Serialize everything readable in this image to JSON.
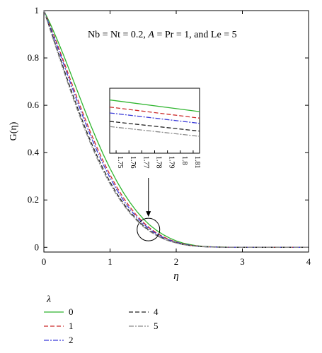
{
  "chart_data": {
    "type": "line",
    "xlabel": "η",
    "ylabel": "G(η)",
    "xlim": [
      0,
      4
    ],
    "ylim": [
      -0.02,
      1.0
    ],
    "xticks": [
      "0",
      "1",
      "2",
      "3",
      "4"
    ],
    "yticks": [
      "0",
      "0.2",
      "0.4",
      "0.6",
      "0.8",
      "1"
    ],
    "annotation": {
      "parts": [
        {
          "text": "Nb = Nt = 0.2, ",
          "italic": false
        },
        {
          "text": "A",
          "italic": true
        },
        {
          "text": " = Pr = 1, and Le = 5",
          "italic": false
        }
      ]
    },
    "legend": {
      "title": "λ",
      "placement": "bottom-left",
      "entries": [
        "0",
        "1",
        "2",
        "4",
        "5"
      ]
    },
    "x": [
      0,
      0.1,
      0.2,
      0.3,
      0.4,
      0.5,
      0.6,
      0.7,
      0.8,
      0.9,
      1.0,
      1.1,
      1.2,
      1.3,
      1.4,
      1.5,
      1.6,
      1.7,
      1.8,
      1.9,
      2.0,
      2.1,
      2.2,
      2.3,
      2.4,
      2.5,
      2.6,
      2.7,
      2.8,
      2.9,
      3.0,
      3.2,
      3.4,
      3.6,
      3.8,
      4.0
    ],
    "series": [
      {
        "name": "0",
        "color": "#2fb52f",
        "dash": "",
        "values": [
          1.0,
          0.942,
          0.878,
          0.81,
          0.738,
          0.665,
          0.592,
          0.521,
          0.454,
          0.391,
          0.333,
          0.28,
          0.232,
          0.19,
          0.153,
          0.121,
          0.094,
          0.072,
          0.054,
          0.039,
          0.027,
          0.018,
          0.012,
          0.007,
          0.004,
          0.0025,
          0.0015,
          0.001,
          0.0005,
          0.0003,
          0.0002,
          0.0001,
          0.0,
          0.0,
          0.0,
          0.0
        ]
      },
      {
        "name": "1",
        "color": "#cc2a2a",
        "dash": "6,3",
        "values": [
          1.0,
          0.932,
          0.86,
          0.785,
          0.709,
          0.633,
          0.559,
          0.489,
          0.423,
          0.362,
          0.306,
          0.255,
          0.21,
          0.17,
          0.135,
          0.106,
          0.081,
          0.061,
          0.045,
          0.032,
          0.022,
          0.015,
          0.009,
          0.006,
          0.0035,
          0.002,
          0.0012,
          0.0008,
          0.0004,
          0.0002,
          0.0001,
          0.0,
          0.0,
          0.0,
          0.0,
          0.0
        ]
      },
      {
        "name": "2",
        "color": "#3b3bd9",
        "dash": "7,2,2,2",
        "values": [
          1.0,
          0.927,
          0.851,
          0.773,
          0.696,
          0.619,
          0.545,
          0.475,
          0.409,
          0.349,
          0.294,
          0.244,
          0.2,
          0.161,
          0.128,
          0.1,
          0.076,
          0.057,
          0.042,
          0.03,
          0.021,
          0.014,
          0.009,
          0.005,
          0.003,
          0.0018,
          0.001,
          0.0006,
          0.0003,
          0.0002,
          0.0001,
          0.0,
          0.0,
          0.0,
          0.0,
          0.0
        ]
      },
      {
        "name": "4",
        "color": "#222222",
        "dash": "6,3",
        "values": [
          1.0,
          0.918,
          0.836,
          0.754,
          0.673,
          0.596,
          0.522,
          0.452,
          0.388,
          0.329,
          0.276,
          0.228,
          0.186,
          0.15,
          0.118,
          0.092,
          0.07,
          0.052,
          0.038,
          0.027,
          0.019,
          0.012,
          0.008,
          0.005,
          0.0028,
          0.0016,
          0.0009,
          0.0005,
          0.0003,
          0.0001,
          0.0,
          0.0,
          0.0,
          0.0,
          0.0,
          0.0
        ]
      },
      {
        "name": "5",
        "color": "#8a8a8a",
        "dash": "7,2,2,2",
        "values": [
          1.0,
          0.914,
          0.829,
          0.745,
          0.663,
          0.585,
          0.511,
          0.442,
          0.378,
          0.32,
          0.268,
          0.221,
          0.18,
          0.144,
          0.114,
          0.088,
          0.067,
          0.05,
          0.036,
          0.026,
          0.018,
          0.012,
          0.007,
          0.0045,
          0.0026,
          0.0015,
          0.0008,
          0.0005,
          0.0002,
          0.0001,
          0.0,
          0.0,
          0.0,
          0.0,
          0.0,
          0.0
        ]
      }
    ],
    "circle_marker": {
      "x": 1.58,
      "y": 0.075
    },
    "inset": {
      "type": "line",
      "xlim": [
        1.745,
        1.815
      ],
      "ylim": [
        0.062,
        0.072
      ],
      "xticks": [
        "1.75",
        "1.76",
        "1.77",
        "1.78",
        "1.79",
        "1.8",
        "1.81"
      ],
      "series": [
        {
          "name": "0",
          "color": "#2fb52f",
          "dash": "",
          "x": [
            1.745,
            1.815
          ],
          "values": [
            0.0702,
            0.0684
          ]
        },
        {
          "name": "1",
          "color": "#cc2a2a",
          "dash": "6,3",
          "x": [
            1.745,
            1.815
          ],
          "values": [
            0.0691,
            0.0674
          ]
        },
        {
          "name": "2",
          "color": "#3b3bd9",
          "dash": "7,2,2,2",
          "x": [
            1.745,
            1.815
          ],
          "values": [
            0.0682,
            0.0666
          ]
        },
        {
          "name": "4",
          "color": "#222222",
          "dash": "6,3",
          "x": [
            1.745,
            1.815
          ],
          "values": [
            0.0669,
            0.0654
          ]
        },
        {
          "name": "5",
          "color": "#8a8a8a",
          "dash": "7,2,2,2",
          "x": [
            1.745,
            1.815
          ],
          "values": [
            0.0661,
            0.0646
          ]
        }
      ]
    }
  }
}
